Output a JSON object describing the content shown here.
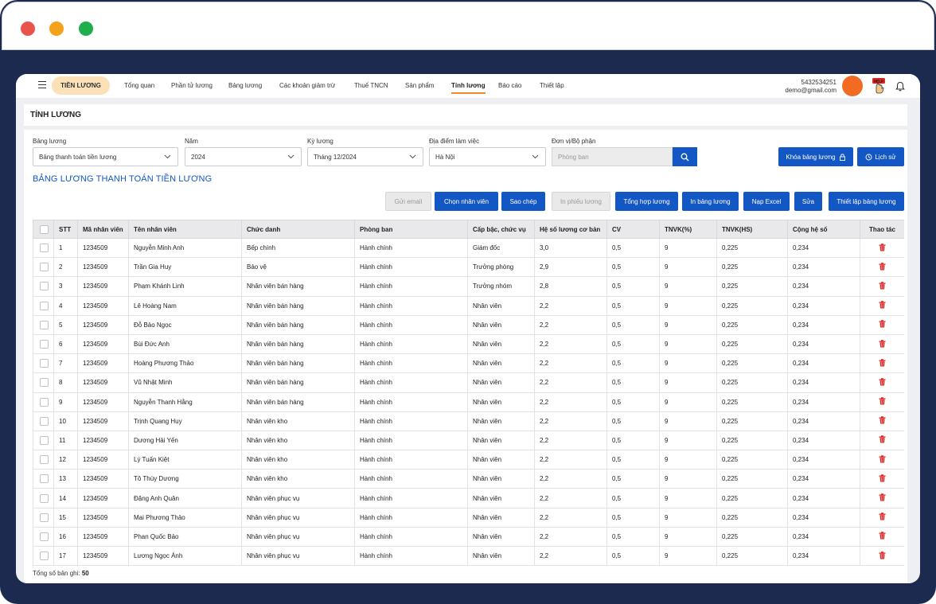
{
  "nav": {
    "module": "TIỀN LƯƠNG",
    "items": [
      {
        "label": "Tổng quan",
        "active": false
      },
      {
        "label": "Phần tử lương",
        "active": false
      },
      {
        "label": "Bảng lương",
        "active": false
      },
      {
        "label": "Các khoản giảm trừ",
        "active": false
      },
      {
        "label": "Thuế TNCN",
        "active": false
      },
      {
        "label": "Sản phẩm",
        "active": false
      },
      {
        "label": "Tính lương",
        "active": true
      },
      {
        "label": "Báo cáo",
        "active": false
      },
      {
        "label": "Thiết lập",
        "active": false
      }
    ],
    "user_id": "5432534251",
    "user_email": "demo@gmail.com",
    "help_badge": "HELP"
  },
  "page_title": "TÍNH LƯƠNG",
  "filters": {
    "bang_luong": {
      "label": "Bảng lương",
      "value": "Bảng thanh toán tiền lương"
    },
    "nam": {
      "label": "Năm",
      "value": "2024"
    },
    "ky_luong": {
      "label": "Kỳ lương",
      "value": "Tháng 12/2024"
    },
    "dia_diem": {
      "label": "Địa điểm làm việc",
      "value": "Hà Nội"
    },
    "don_vi": {
      "label": "Đơn vị/Bộ phận",
      "placeholder": "Phòng ban"
    }
  },
  "top_actions": {
    "lock": "Khóa bảng lương",
    "history": "Lịch sử"
  },
  "section_title": "BẢNG LƯƠNG THANH TOÁN TIỀN LƯƠNG",
  "actions": {
    "send_email": "Gửi email",
    "choose_staff": "Chọn nhân viên",
    "copy": "Sao chép",
    "print_slip": "In phiếu lương",
    "summary": "Tổng hợp lương",
    "print_table": "In bảng lương",
    "import_excel": "Nạp Excel",
    "edit": "Sửa",
    "setup": "Thiết lập bảng lương"
  },
  "table": {
    "columns": [
      "STT",
      "Mã nhân viên",
      "Tên nhân viên",
      "Chức danh",
      "Phòng ban",
      "Cấp bậc, chức vụ",
      "Hệ số lương cơ bản",
      "CV",
      "TNVK(%)",
      "TNVK(HS)",
      "Cộng hệ số",
      "Thao tác"
    ],
    "rows": [
      [
        "1",
        "1234509",
        "Nguyễn Minh Anh",
        "Bếp chính",
        "Hành chính",
        "Giám đốc",
        "3,0",
        "0,5",
        "9",
        "0,225",
        "0,234"
      ],
      [
        "2",
        "1234509",
        "Trần Gia Huy",
        "Bảo vệ",
        "Hành chính",
        "Trưởng phòng",
        "2,9",
        "0,5",
        "9",
        "0,225",
        "0,234"
      ],
      [
        "3",
        "1234509",
        "Phạm Khánh Linh",
        "Nhân viên bán hàng",
        "Hành chính",
        "Trưởng nhóm",
        "2,8",
        "0,5",
        "9",
        "0,225",
        "0,234"
      ],
      [
        "4",
        "1234509",
        "Lê Hoàng Nam",
        "Nhân viên bán hàng",
        "Hành chính",
        "Nhân viên",
        "2,2",
        "0,5",
        "9",
        "0,225",
        "0,234"
      ],
      [
        "5",
        "1234509",
        "Đỗ Bảo Ngọc",
        "Nhân viên bán hàng",
        "Hành chính",
        "Nhân viên",
        "2,2",
        "0,5",
        "9",
        "0,225",
        "0,234"
      ],
      [
        "6",
        "1234509",
        "Bùi Đức Anh",
        "Nhân viên bán hàng",
        "Hành chính",
        "Nhân viên",
        "2,2",
        "0,5",
        "9",
        "0,225",
        "0,234"
      ],
      [
        "7",
        "1234509",
        "Hoàng Phương Thảo",
        "Nhân viên bán hàng",
        "Hành chính",
        "Nhân viên",
        "2,2",
        "0,5",
        "9",
        "0,225",
        "0,234"
      ],
      [
        "8",
        "1234509",
        "Vũ Nhật Minh",
        "Nhân viên bán hàng",
        "Hành chính",
        "Nhân viên",
        "2,2",
        "0,5",
        "9",
        "0,225",
        "0,234"
      ],
      [
        "9",
        "1234509",
        "Nguyễn Thanh Hằng",
        "Nhân viên bán hàng",
        "Hành chính",
        "Nhân viên",
        "2,2",
        "0,5",
        "9",
        "0,225",
        "0,234"
      ],
      [
        "10",
        "1234509",
        "Trịnh Quang Huy",
        "Nhân viên kho",
        "Hành chính",
        "Nhân viên",
        "2,2",
        "0,5",
        "9",
        "0,225",
        "0,234"
      ],
      [
        "11",
        "1234509",
        "Dương Hải Yến",
        "Nhân viên kho",
        "Hành chính",
        "Nhân viên",
        "2,2",
        "0,5",
        "9",
        "0,225",
        "0,234"
      ],
      [
        "12",
        "1234509",
        "Lý Tuấn Kiệt",
        "Nhân viên kho",
        "Hành chính",
        "Nhân viên",
        "2,2",
        "0,5",
        "9",
        "0,225",
        "0,234"
      ],
      [
        "13",
        "1234509",
        "Tô Thùy Dương",
        "Nhân viên kho",
        "Hành chính",
        "Nhân viên",
        "2,2",
        "0,5",
        "9",
        "0,225",
        "0,234"
      ],
      [
        "14",
        "1234509",
        "Đặng Anh Quân",
        "Nhân viên phục vụ",
        "Hành chính",
        "Nhân viên",
        "2,2",
        "0,5",
        "9",
        "0,225",
        "0,234"
      ],
      [
        "15",
        "1234509",
        "Mai Phương Thảo",
        "Nhân viên phục vụ",
        "Hành chính",
        "Nhân viên",
        "2,2",
        "0,5",
        "9",
        "0,225",
        "0,234"
      ],
      [
        "16",
        "1234509",
        "Phan Quốc Bảo",
        "Nhân viên phục vụ",
        "Hành chính",
        "Nhân viên",
        "2,2",
        "0,5",
        "9",
        "0,225",
        "0,234"
      ],
      [
        "17",
        "1234509",
        "Lương Ngọc Ánh",
        "Nhân viên phục vụ",
        "Hành chính",
        "Nhân viên",
        "2,2",
        "0,5",
        "9",
        "0,225",
        "0,234"
      ]
    ]
  },
  "footer": {
    "total_label": "Tổng số bản ghi:",
    "total_value": "50"
  },
  "colors": {
    "primary": "#1357c5",
    "accent": "#f08a24",
    "delete": "#e0201e",
    "frame": "#1c2a50"
  }
}
